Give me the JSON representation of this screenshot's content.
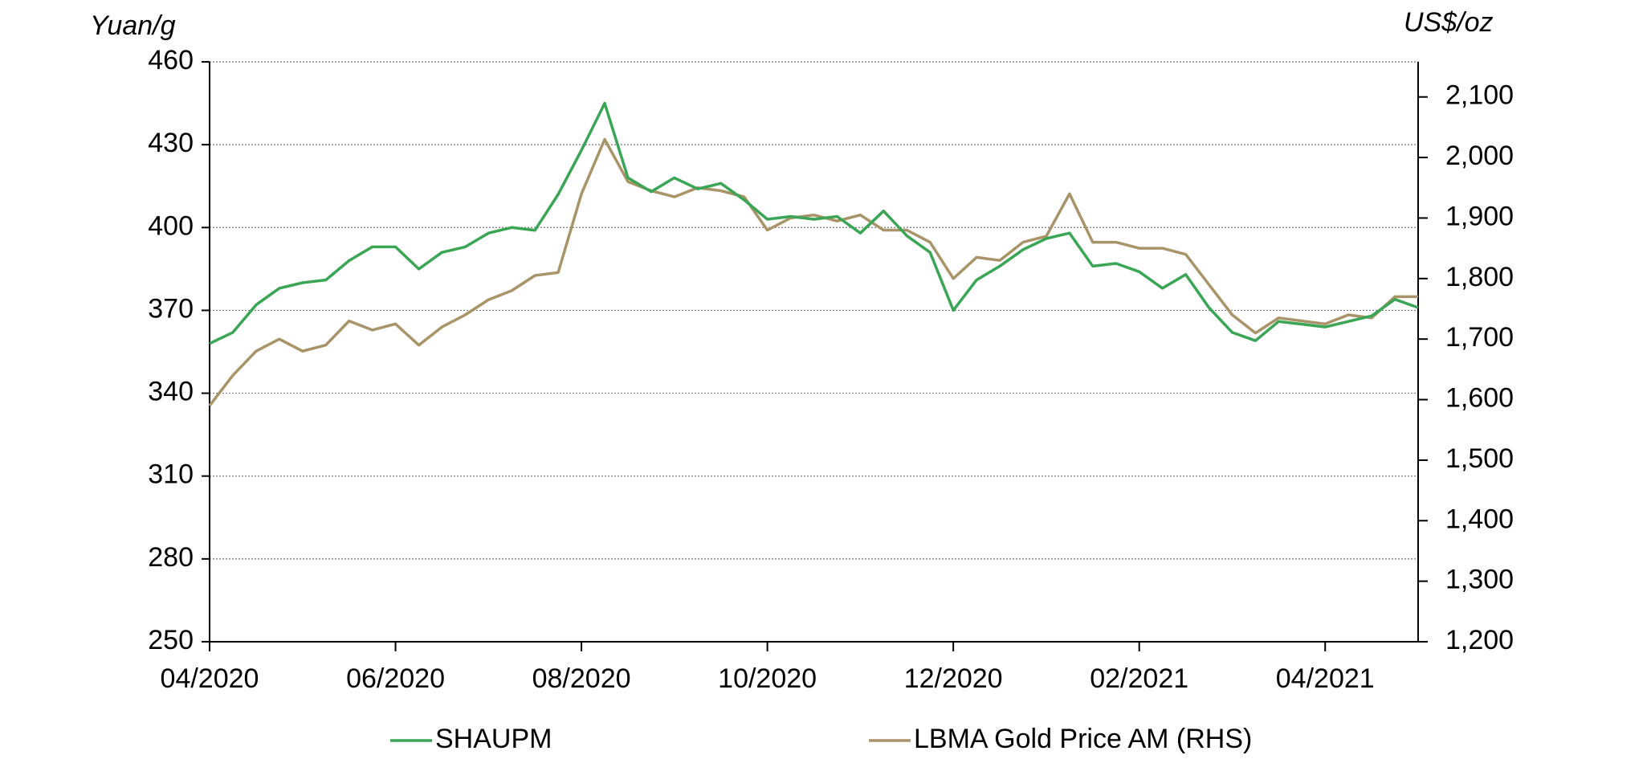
{
  "chart_data": {
    "type": "line",
    "y_axis_label": "Yuan/g",
    "y2_axis_label": "US$/oz",
    "categories": [
      "04/2020",
      null,
      null,
      null,
      null,
      null,
      null,
      null,
      "06/2020",
      null,
      null,
      null,
      null,
      null,
      null,
      null,
      "08/2020",
      null,
      null,
      null,
      null,
      null,
      null,
      null,
      "10/2020",
      null,
      null,
      null,
      null,
      null,
      null,
      null,
      "12/2020",
      null,
      null,
      null,
      null,
      null,
      null,
      null,
      "02/2021",
      null,
      null,
      null,
      null,
      null,
      null,
      null,
      "04/2021",
      null,
      null,
      null,
      null
    ],
    "series": [
      {
        "name": "SHAUPM",
        "color": "#3aa655",
        "axis": "y",
        "values": [
          358,
          362,
          372,
          378,
          380,
          381,
          388,
          393,
          393,
          385,
          391,
          393,
          398,
          400,
          399,
          412,
          428,
          445,
          418,
          413,
          418,
          414,
          416,
          410,
          403,
          404,
          403,
          404,
          398,
          406,
          397,
          391,
          370,
          381,
          386,
          392,
          396,
          398,
          386,
          387,
          384,
          378,
          383,
          371,
          362,
          359,
          366,
          365,
          364,
          366,
          368,
          374,
          371
        ]
      },
      {
        "name": "LBMA Gold Price AM (RHS)",
        "color": "#a89468",
        "axis": "y2",
        "values": [
          1590,
          1640,
          1680,
          1700,
          1680,
          1690,
          1730,
          1715,
          1725,
          1690,
          1720,
          1740,
          1765,
          1780,
          1805,
          1810,
          1940,
          2030,
          1960,
          1945,
          1935,
          1950,
          1945,
          1935,
          1880,
          1900,
          1905,
          1895,
          1905,
          1880,
          1880,
          1860,
          1800,
          1835,
          1830,
          1860,
          1870,
          1940,
          1860,
          1860,
          1850,
          1850,
          1840,
          1790,
          1740,
          1710,
          1735,
          1730,
          1725,
          1740,
          1735,
          1770,
          1770
        ]
      }
    ],
    "ylim": [
      250,
      460
    ],
    "yticks": [
      250,
      280,
      310,
      340,
      370,
      400,
      430,
      460
    ],
    "y2lim": [
      1200,
      2158
    ],
    "y2ticks": [
      {
        "value": 1200,
        "label": "1,200"
      },
      {
        "value": 1300,
        "label": "1,300"
      },
      {
        "value": 1400,
        "label": "1,400"
      },
      {
        "value": 1500,
        "label": "1,500"
      },
      {
        "value": 1600,
        "label": "1,600"
      },
      {
        "value": 1700,
        "label": "1,700"
      },
      {
        "value": 1800,
        "label": "1,800"
      },
      {
        "value": 1900,
        "label": "1,900"
      },
      {
        "value": 2000,
        "label": "2,000"
      },
      {
        "value": 2100,
        "label": "2,100"
      }
    ],
    "grid": true,
    "legend": "bottom"
  }
}
